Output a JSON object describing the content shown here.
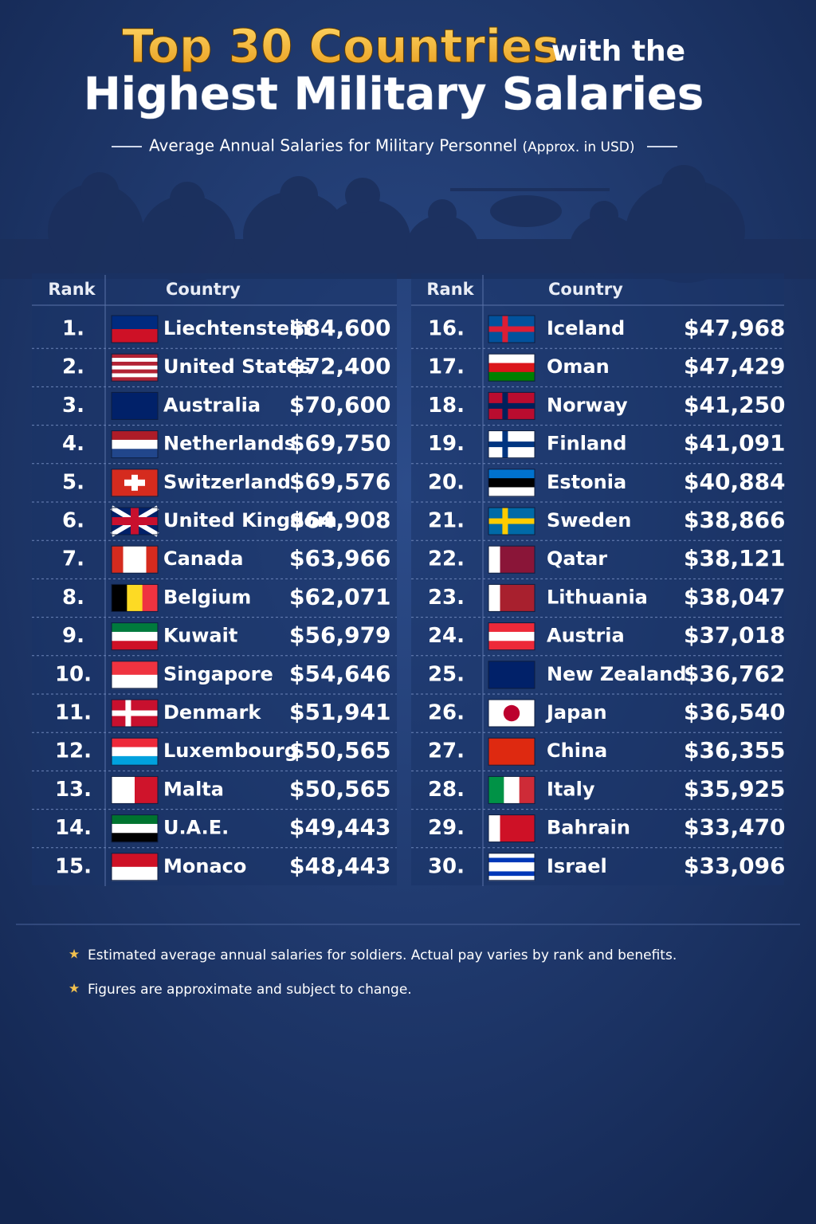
{
  "header": {
    "title_highlight": "Top 30 Countries",
    "title_connector": "with the",
    "title_main": "Highest Military Salaries",
    "subtitle": "Average Annual Salaries for Military Personnel",
    "subtitle_note": "(Approx. in USD)"
  },
  "tables": [
    {
      "headers": [
        "Rank",
        "Country"
      ],
      "rows": [
        [
          "1.",
          "Liechtenstein",
          "$84,600"
        ],
        [
          "2.",
          "United States",
          "$72,400"
        ],
        [
          "3.",
          "Australia",
          "$70,600"
        ],
        [
          "4.",
          "Netherlands",
          "$69,750"
        ],
        [
          "5.",
          "Switzerland",
          "$69,576"
        ],
        [
          "6.",
          "United Kingdom",
          "$64,908"
        ],
        [
          "7.",
          "Canada",
          "$63,966"
        ],
        [
          "8.",
          "Belgium",
          "$62,071"
        ],
        [
          "9.",
          "Kuwait",
          "$56,979"
        ],
        [
          "10.",
          "Singapore",
          "$54,646"
        ],
        [
          "11.",
          "Denmark",
          "$51,941"
        ],
        [
          "12.",
          "Luxembourg",
          "$50,565"
        ],
        [
          "13.",
          "Malta",
          "$50,565"
        ],
        [
          "14.",
          "U.A.E.",
          "$49,443"
        ],
        [
          "15.",
          "Monaco",
          "$48,443"
        ]
      ]
    },
    {
      "headers": [
        "Rank",
        "Country"
      ],
      "rows": [
        [
          "16.",
          "Iceland",
          "$47,968"
        ],
        [
          "17.",
          "Oman",
          "$47,429"
        ],
        [
          "18.",
          "Norway",
          "$41,250"
        ],
        [
          "19.",
          "Finland",
          "$41,091"
        ],
        [
          "20.",
          "Estonia",
          "$40,884"
        ],
        [
          "21.",
          "Sweden",
          "$38,866"
        ],
        [
          "22.",
          "Qatar",
          "$38,121"
        ],
        [
          "23.",
          "Lithuania",
          "$38,047"
        ],
        [
          "24.",
          "Austria",
          "$37,018"
        ],
        [
          "25.",
          "New Zealand",
          "$36,762"
        ],
        [
          "26.",
          "Japan",
          "$36,540"
        ],
        [
          "27.",
          "China",
          "$36,355"
        ],
        [
          "28.",
          "Italy",
          "$35,925"
        ],
        [
          "29.",
          "Bahrain",
          "$33,470"
        ],
        [
          "30.",
          "Israel",
          "$33,096"
        ]
      ]
    }
  ],
  "footnotes": [
    "Estimated average annual salaries for soldiers. Actual pay varies by rank and benefits.",
    "Figures are approximate and subject to change."
  ]
}
